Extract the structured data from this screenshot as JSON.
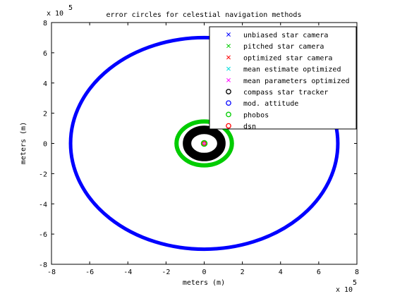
{
  "chart_data": {
    "type": "scatter",
    "title": "error circles for celestial navigation methods",
    "xlabel": "meters (m)",
    "ylabel": "meters (m)",
    "x_multiplier_label": {
      "base": "x 10",
      "exp": "5"
    },
    "y_multiplier_label": {
      "base": "x 10",
      "exp": "5"
    },
    "xlim": [
      -8,
      8
    ],
    "ylim": [
      -8,
      8
    ],
    "x_ticks": [
      "-8",
      "-6",
      "-4",
      "-2",
      "0",
      "2",
      "4",
      "6",
      "8"
    ],
    "y_ticks": [
      "8",
      "6",
      "4",
      "2",
      "0",
      "-2",
      "-4",
      "-6",
      "-8"
    ],
    "grid": false,
    "legend_position": "top-right",
    "series": [
      {
        "name": "unbiased star camera",
        "marker": "x",
        "color": "#0000ff",
        "center": [
          0,
          0
        ],
        "radius": 0.0
      },
      {
        "name": "pitched star camera",
        "marker": "x",
        "color": "#00cc00",
        "center": [
          0,
          0
        ],
        "radius": 0.0
      },
      {
        "name": "optimized star camera",
        "marker": "x",
        "color": "#ff0000",
        "center": [
          0,
          0
        ],
        "radius": 0.0
      },
      {
        "name": "mean estimate optimized",
        "marker": "x",
        "color": "#00dddd",
        "center": [
          0,
          0
        ],
        "radius": 0.0
      },
      {
        "name": "mean parameters optimized",
        "marker": "x",
        "color": "#ff00ff",
        "center": [
          0,
          0
        ],
        "radius": 0.0
      },
      {
        "name": "compass star tracker",
        "marker": "o",
        "color": "#000000",
        "center": [
          0,
          0
        ],
        "radius": 0.9
      },
      {
        "name": "mod. attitude",
        "marker": "o",
        "color": "#0000ff",
        "center": [
          0,
          0
        ],
        "radius": 7.0
      },
      {
        "name": "phobos",
        "marker": "o",
        "color": "#00cc00",
        "center": [
          0,
          0
        ],
        "radius": 1.45
      },
      {
        "name": "dsn",
        "marker": "o",
        "color": "#ff0000",
        "center": [
          0,
          0
        ],
        "radius": 1.5
      }
    ]
  }
}
